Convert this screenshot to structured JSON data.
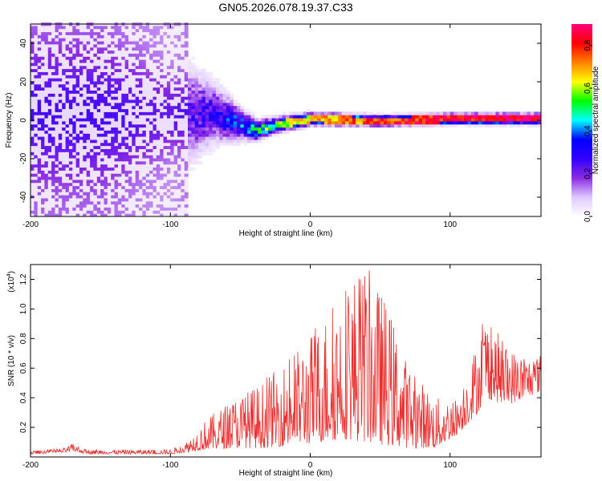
{
  "title": "GN05.2026.078.19.37.C33",
  "chart_data": [
    {
      "type": "heatmap",
      "name": "spectrogram",
      "xlabel": "Height of straight line (km)",
      "ylabel": "Frequency (Hz)",
      "xlim": [
        -200,
        165
      ],
      "ylim": [
        -50,
        50
      ],
      "xticks": [
        -200,
        -100,
        0,
        100
      ],
      "yticks": [
        -40,
        -20,
        0,
        20,
        40
      ],
      "colorbar": {
        "label": "Normalized spectral amplitude",
        "range": [
          0,
          0.9
        ],
        "ticks": [
          0.0,
          0.2,
          0.4,
          0.6,
          0.8
        ],
        "tick_labels": [
          "0.0",
          "0.2",
          "0.4",
          "0.6",
          "0.8"
        ],
        "colors": [
          "#ffffff",
          "#e0c8ff",
          "#8a2be2",
          "#3300ff",
          "#0000ff",
          "#00ffff",
          "#00ff00",
          "#ffff00",
          "#ff8000",
          "#ff0000",
          "#ff0080"
        ]
      },
      "band_profile": [
        {
          "x": -200,
          "center": 3,
          "spread": 45,
          "amp": 0.25
        },
        {
          "x": -150,
          "center": 2,
          "spread": 45,
          "amp": 0.25
        },
        {
          "x": -100,
          "center": 2,
          "spread": 25,
          "amp": 0.22
        },
        {
          "x": -70,
          "center": 3,
          "spread": 12,
          "amp": 0.3
        },
        {
          "x": -50,
          "center": -3,
          "spread": 6,
          "amp": 0.42
        },
        {
          "x": -40,
          "center": -6,
          "spread": 4,
          "amp": 0.55
        },
        {
          "x": -25,
          "center": -3,
          "spread": 3,
          "amp": 0.55
        },
        {
          "x": 0,
          "center": 0,
          "spread": 2.5,
          "amp": 0.65
        },
        {
          "x": 50,
          "center": -1,
          "spread": 2,
          "amp": 0.75
        },
        {
          "x": 100,
          "center": 0,
          "spread": 2,
          "amp": 0.82
        },
        {
          "x": 165,
          "center": 0,
          "spread": 2,
          "amp": 0.85
        }
      ]
    },
    {
      "type": "line",
      "name": "snr",
      "xlabel": "Height of straight line (km)",
      "ylabel": "SNR (10 * v/v)",
      "scale_label": "(x10",
      "scale_exp": "4",
      "scale_close": ")",
      "xlim": [
        -200,
        165
      ],
      "ylim": [
        0,
        1.3
      ],
      "xticks": [
        -200,
        -100,
        0,
        100
      ],
      "yticks": [
        0.2,
        0.4,
        0.6,
        0.8,
        1.0,
        1.2
      ],
      "ytick_labels": [
        "0.2",
        "0.4",
        "0.6",
        "0.8",
        "1.0",
        "1.2"
      ],
      "color": "#e83030",
      "envelope": [
        {
          "x": -200,
          "base": 0.02,
          "peak": 0.04
        },
        {
          "x": -175,
          "base": 0.03,
          "peak": 0.06
        },
        {
          "x": -170,
          "base": 0.04,
          "peak": 0.09
        },
        {
          "x": -160,
          "base": 0.02,
          "peak": 0.05
        },
        {
          "x": -100,
          "base": 0.02,
          "peak": 0.05
        },
        {
          "x": -90,
          "base": 0.03,
          "peak": 0.09
        },
        {
          "x": -75,
          "base": 0.05,
          "peak": 0.25
        },
        {
          "x": -55,
          "base": 0.06,
          "peak": 0.4
        },
        {
          "x": -35,
          "base": 0.06,
          "peak": 0.5
        },
        {
          "x": -10,
          "base": 0.08,
          "peak": 0.72
        },
        {
          "x": 10,
          "base": 0.1,
          "peak": 0.95
        },
        {
          "x": 25,
          "base": 0.12,
          "peak": 1.22
        },
        {
          "x": 40,
          "base": 0.1,
          "peak": 1.3
        },
        {
          "x": 55,
          "base": 0.08,
          "peak": 1.05
        },
        {
          "x": 70,
          "base": 0.06,
          "peak": 0.62
        },
        {
          "x": 90,
          "base": 0.06,
          "peak": 0.4
        },
        {
          "x": 105,
          "base": 0.15,
          "peak": 0.4
        },
        {
          "x": 120,
          "base": 0.3,
          "peak": 0.8
        },
        {
          "x": 125,
          "base": 0.4,
          "peak": 0.98
        },
        {
          "x": 140,
          "base": 0.35,
          "peak": 0.75
        },
        {
          "x": 155,
          "base": 0.4,
          "peak": 0.68
        },
        {
          "x": 165,
          "base": 0.45,
          "peak": 0.7
        }
      ]
    }
  ]
}
